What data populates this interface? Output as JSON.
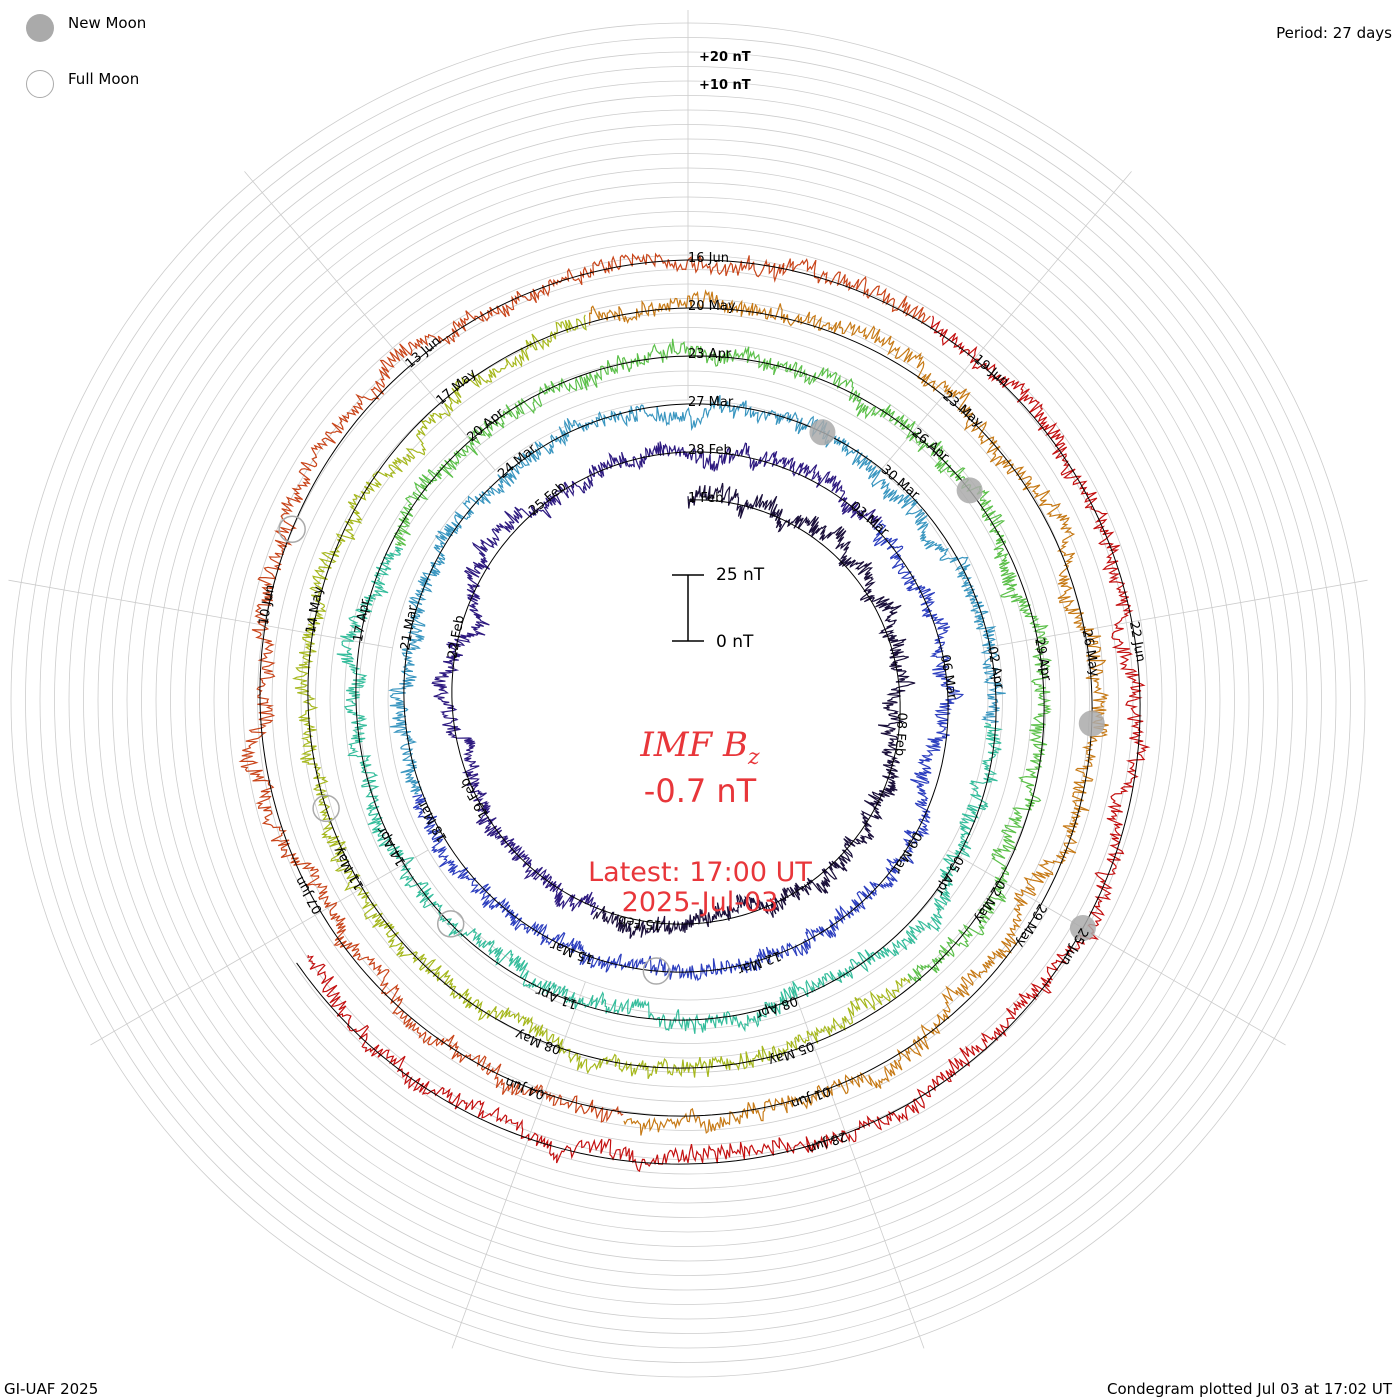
{
  "header": {
    "legend": {
      "new_moon_label": "New Moon",
      "full_moon_label": "Full Moon"
    },
    "period": "Period: 27 days"
  },
  "center": {
    "title": "IMF B",
    "title_sub": "z",
    "value": "-0.7 nT",
    "latest_line1": "Latest: 17:00 UT",
    "latest_line2": "2025-Jul-03"
  },
  "footer": {
    "credit": "GI-UAF 2025",
    "plotted": "Condegram plotted Jul 03 at 17:02 UT"
  },
  "chart_data": {
    "type": "line",
    "form": "condegram spiral",
    "quantity": "IMF Bz",
    "period_days": 27,
    "start": "2025-02-01",
    "end": "2025-07-03T17:00",
    "scale_bar": {
      "top": "25 nT",
      "bottom": "0 nT"
    },
    "outer_scale_labels": [
      "+20 nT",
      "+10 nT"
    ],
    "date_labels": [
      {
        "label": "1 Feb",
        "date": "2025-02-01"
      },
      {
        "label": "08 Feb",
        "date": "2025-02-08"
      },
      {
        "label": "15 Feb",
        "date": "2025-02-15"
      },
      {
        "label": "19 Feb",
        "date": "2025-02-19"
      },
      {
        "label": "22 Feb",
        "date": "2025-02-22"
      },
      {
        "label": "25 Feb",
        "date": "2025-02-25"
      },
      {
        "label": "28 Feb",
        "date": "2025-02-28"
      },
      {
        "label": "03 Mar",
        "date": "2025-03-03"
      },
      {
        "label": "06 Mar",
        "date": "2025-03-06"
      },
      {
        "label": "09 Mar",
        "date": "2025-03-09"
      },
      {
        "label": "12 Mar",
        "date": "2025-03-12"
      },
      {
        "label": "15 Mar",
        "date": "2025-03-15"
      },
      {
        "label": "18 Mar",
        "date": "2025-03-18"
      },
      {
        "label": "21 Mar",
        "date": "2025-03-21"
      },
      {
        "label": "24 Mar",
        "date": "2025-03-24"
      },
      {
        "label": "27 Mar",
        "date": "2025-03-27"
      },
      {
        "label": "30 Mar",
        "date": "2025-03-30"
      },
      {
        "label": "02 Apr",
        "date": "2025-04-02"
      },
      {
        "label": "05 Apr",
        "date": "2025-04-05"
      },
      {
        "label": "08 Apr",
        "date": "2025-04-08"
      },
      {
        "label": "11 Apr",
        "date": "2025-04-11"
      },
      {
        "label": "14 Apr",
        "date": "2025-04-14"
      },
      {
        "label": "17 Apr",
        "date": "2025-04-17"
      },
      {
        "label": "20 Apr",
        "date": "2025-04-20"
      },
      {
        "label": "23 Apr",
        "date": "2025-04-23"
      },
      {
        "label": "26 Apr",
        "date": "2025-04-26"
      },
      {
        "label": "29 Apr",
        "date": "2025-04-29"
      },
      {
        "label": "02 May",
        "date": "2025-05-02"
      },
      {
        "label": "05 May",
        "date": "2025-05-05"
      },
      {
        "label": "08 May",
        "date": "2025-05-08"
      },
      {
        "label": "11 May",
        "date": "2025-05-11"
      },
      {
        "label": "14 May",
        "date": "2025-05-14"
      },
      {
        "label": "17 May",
        "date": "2025-05-17"
      },
      {
        "label": "20 May",
        "date": "2025-05-20"
      },
      {
        "label": "23 May",
        "date": "2025-05-23"
      },
      {
        "label": "26 May",
        "date": "2025-05-26"
      },
      {
        "label": "29 May",
        "date": "2025-05-29"
      },
      {
        "label": "01 Jun",
        "date": "2025-06-01"
      },
      {
        "label": "04 Jun",
        "date": "2025-06-04"
      },
      {
        "label": "07 Jun",
        "date": "2025-06-07"
      },
      {
        "label": "10 Jun",
        "date": "2025-06-10"
      },
      {
        "label": "13 Jun",
        "date": "2025-06-13"
      },
      {
        "label": "16 Jun",
        "date": "2025-06-16"
      },
      {
        "label": "19 Jun",
        "date": "2025-06-19"
      },
      {
        "label": "22 Jun",
        "date": "2025-06-22"
      },
      {
        "label": "25 Jun",
        "date": "2025-06-25"
      },
      {
        "label": "28 Jun",
        "date": "2025-06-28"
      }
    ],
    "new_moons": [
      "2025-03-29",
      "2025-04-27",
      "2025-05-27",
      "2025-06-25"
    ],
    "full_moons": [
      "2025-03-14",
      "2025-04-13",
      "2025-05-12",
      "2025-06-11"
    ],
    "series_colors": [
      "#1a0f3a",
      "#2e1a80",
      "#2d3fbf",
      "#3a96c0",
      "#35bd9c",
      "#5cc04a",
      "#a6b81e",
      "#c77a16",
      "#c9451a",
      "#c41010"
    ],
    "latest_value": -0.7
  }
}
